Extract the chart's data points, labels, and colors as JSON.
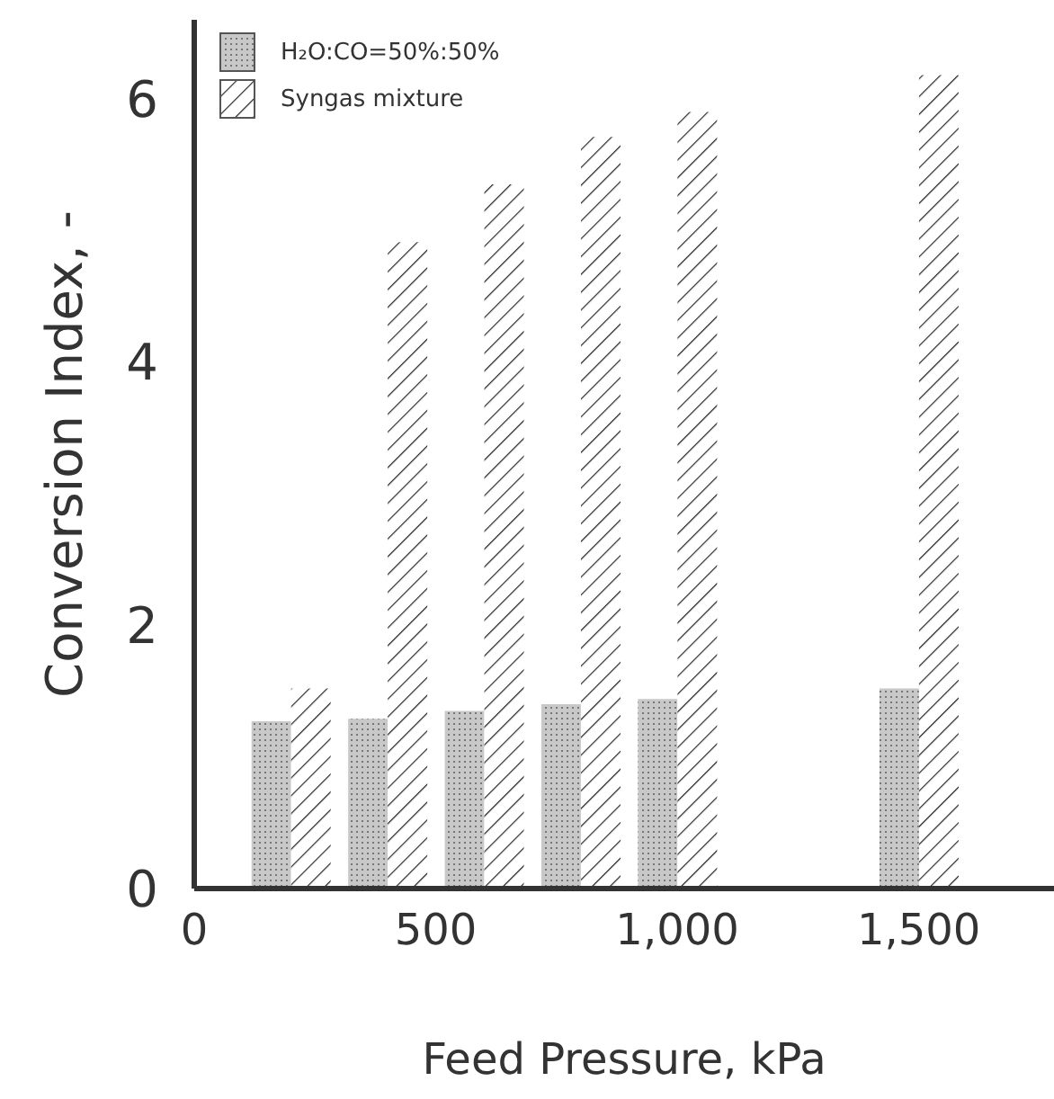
{
  "chart_data": {
    "type": "bar",
    "xlabel": "Feed Pressure, kPa",
    "ylabel": "Conversion Index, -",
    "x": [
      200,
      400,
      600,
      800,
      1000,
      1500
    ],
    "series": [
      {
        "name": "H₂O:CO=50%:50%",
        "color": "#c8c8c8",
        "values": [
          1.27,
          1.29,
          1.35,
          1.4,
          1.44,
          1.52
        ]
      },
      {
        "name": "Syngas mixture",
        "color": "#ffffff",
        "values": [
          1.52,
          4.91,
          5.35,
          5.71,
          5.9,
          6.18
        ]
      }
    ],
    "xlim": [
      0,
      1780
    ],
    "xticks": [
      0,
      500,
      {
        "value": 1000,
        "label": "1,000"
      },
      {
        "value": 1500,
        "label": "1,500"
      }
    ],
    "ylim": [
      0,
      6.6
    ],
    "yticks": [
      0,
      2,
      4,
      6
    ],
    "legend": "top left"
  }
}
